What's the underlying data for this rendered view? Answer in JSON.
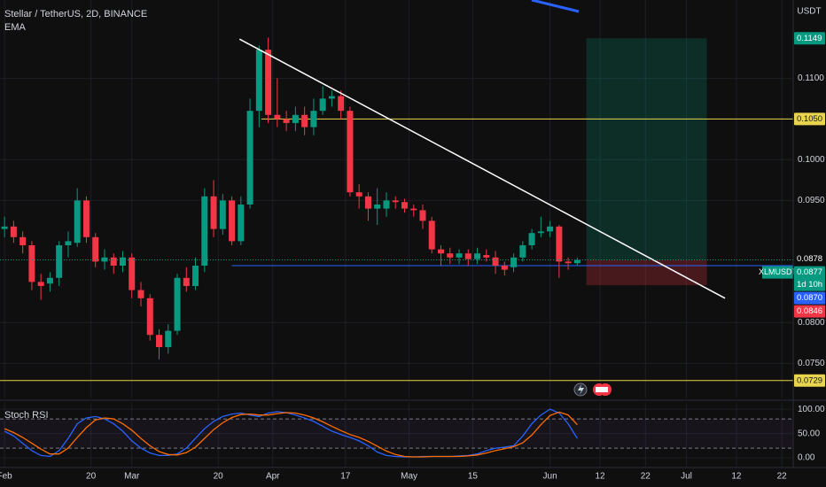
{
  "chart_data": [
    {
      "type": "candlestick",
      "title": "Stellar / TetherUS, 2D, BINANCE",
      "indicator": "EMA",
      "currency": "USDT",
      "xlim": [
        -1,
        173.5
      ],
      "ylim": [
        0.0707,
        0.1196
      ],
      "yticks": [
        {
          "value": 0.075,
          "label": "0.0750"
        },
        {
          "value": 0.08,
          "label": "0.0800"
        },
        {
          "value": 0.095,
          "label": "0.0950"
        },
        {
          "value": 0.1,
          "label": "0.1000"
        },
        {
          "value": 0.11,
          "label": "0.1100"
        }
      ],
      "x": [
        0,
        2,
        4,
        6,
        8,
        10,
        12,
        14,
        16,
        18,
        20,
        22,
        24,
        26,
        28,
        30,
        32,
        34,
        36,
        38,
        40,
        42,
        44,
        46,
        48,
        50,
        52,
        54,
        56,
        58,
        60,
        62,
        64,
        66,
        68,
        70,
        72,
        74,
        76,
        78,
        80,
        82,
        84,
        86,
        88,
        90,
        92,
        94,
        96,
        98,
        100,
        102,
        104,
        106,
        108,
        110,
        112,
        114,
        116,
        118,
        120,
        122,
        124,
        126
      ],
      "open": [
        0.0915,
        0.0918,
        0.0905,
        0.0895,
        0.085,
        0.0848,
        0.0855,
        0.0895,
        0.0898,
        0.095,
        0.0905,
        0.0875,
        0.088,
        0.087,
        0.088,
        0.084,
        0.083,
        0.0785,
        0.077,
        0.079,
        0.0855,
        0.0845,
        0.087,
        0.0955,
        0.0915,
        0.095,
        0.09,
        0.0945,
        0.106,
        0.1135,
        0.1055,
        0.105,
        0.1045,
        0.1055,
        0.104,
        0.106,
        0.1075,
        0.1078,
        0.106,
        0.096,
        0.0955,
        0.094,
        0.094,
        0.095,
        0.0948,
        0.094,
        0.0938,
        0.0925,
        0.089,
        0.0885,
        0.088,
        0.0885,
        0.0878,
        0.0883,
        0.088,
        0.087,
        0.0868,
        0.088,
        0.0895,
        0.091,
        0.0912,
        0.0918,
        0.0875,
        0.0873
      ],
      "high": [
        0.093,
        0.0925,
        0.0912,
        0.09,
        0.086,
        0.0862,
        0.09,
        0.0912,
        0.0965,
        0.0955,
        0.091,
        0.089,
        0.0885,
        0.0888,
        0.0885,
        0.085,
        0.0835,
        0.0792,
        0.0798,
        0.086,
        0.0868,
        0.088,
        0.0965,
        0.0975,
        0.0958,
        0.0955,
        0.0955,
        0.1075,
        0.114,
        0.115,
        0.11,
        0.106,
        0.1065,
        0.1065,
        0.1075,
        0.109,
        0.1085,
        0.1085,
        0.1065,
        0.097,
        0.096,
        0.0965,
        0.096,
        0.0955,
        0.0952,
        0.0945,
        0.0945,
        0.093,
        0.0895,
        0.0892,
        0.089,
        0.089,
        0.0892,
        0.089,
        0.0888,
        0.0875,
        0.0885,
        0.09,
        0.0915,
        0.093,
        0.0925,
        0.092,
        0.088,
        0.088
      ],
      "low": [
        0.0905,
        0.0898,
        0.0885,
        0.084,
        0.0828,
        0.0838,
        0.0845,
        0.088,
        0.0893,
        0.0898,
        0.0868,
        0.0865,
        0.086,
        0.0862,
        0.083,
        0.082,
        0.0778,
        0.0755,
        0.0762,
        0.0785,
        0.0838,
        0.084,
        0.0862,
        0.0905,
        0.0908,
        0.0895,
        0.0895,
        0.094,
        0.104,
        0.1045,
        0.104,
        0.1035,
        0.1035,
        0.103,
        0.103,
        0.1055,
        0.1065,
        0.105,
        0.0955,
        0.094,
        0.0925,
        0.092,
        0.093,
        0.094,
        0.0935,
        0.093,
        0.0915,
        0.0885,
        0.087,
        0.0872,
        0.0872,
        0.087,
        0.0872,
        0.0875,
        0.086,
        0.0858,
        0.0862,
        0.0875,
        0.089,
        0.0905,
        0.0905,
        0.0855,
        0.0865,
        0.087
      ],
      "close": [
        0.0918,
        0.0905,
        0.0895,
        0.085,
        0.0845,
        0.0855,
        0.0895,
        0.09,
        0.095,
        0.0905,
        0.0875,
        0.088,
        0.087,
        0.088,
        0.084,
        0.083,
        0.0785,
        0.077,
        0.079,
        0.0855,
        0.0845,
        0.087,
        0.0955,
        0.0915,
        0.095,
        0.09,
        0.0945,
        0.106,
        0.1135,
        0.1055,
        0.105,
        0.1045,
        0.1055,
        0.104,
        0.106,
        0.1075,
        0.1078,
        0.106,
        0.096,
        0.0955,
        0.094,
        0.0945,
        0.095,
        0.0948,
        0.094,
        0.0938,
        0.0925,
        0.089,
        0.0885,
        0.088,
        0.0885,
        0.0878,
        0.0885,
        0.088,
        0.087,
        0.0865,
        0.088,
        0.0895,
        0.091,
        0.0912,
        0.0918,
        0.0875,
        0.0873,
        0.0877
      ],
      "up_color": "#089981",
      "down_color": "#f23645",
      "trend_line": {
        "x": [
          51.7,
          158.5
        ],
        "y": [
          0.1148,
          0.083
        ],
        "color": "#ffffff"
      },
      "levels": [
        {
          "value": 0.105,
          "x_start": 56.5,
          "color": "#e8d44d"
        },
        {
          "value": 0.087,
          "x_start": 50,
          "color": "#2962ff"
        },
        {
          "value": 0.0729,
          "x_start": -1,
          "color": "#e8d44d"
        }
      ],
      "position": {
        "x": [
          128,
          154.5
        ],
        "entry": 0.0877,
        "target": 0.1149,
        "stop": 0.0846
      },
      "price_labels": [
        {
          "value": 0.1149,
          "label": "0.1149",
          "color": "#089981"
        },
        {
          "value": 0.105,
          "label": "0.1050",
          "color": "#e8d44d"
        },
        {
          "value": 0.0878,
          "label": "0.0878",
          "color": "#0f0f0f"
        },
        {
          "value": 0.0877,
          "label": "0.0877",
          "color": "#089981",
          "symbol": "XLMUSDT",
          "countdown": "1d 10h"
        },
        {
          "value": 0.087,
          "label": "0.0870",
          "color": "#2962ff"
        },
        {
          "value": 0.0846,
          "label": "0.0846",
          "color": "#f23645"
        },
        {
          "value": 0.0729,
          "label": "0.0729",
          "color": "#e8d44d"
        }
      ]
    },
    {
      "type": "line",
      "title": "Stoch RSI",
      "xlim": [
        -1,
        173.5
      ],
      "ylim": [
        -18,
        113
      ],
      "yticks": [
        {
          "value": 100,
          "label": "100.00"
        },
        {
          "value": 50,
          "label": "50.00"
        },
        {
          "value": 0,
          "label": "0.00"
        }
      ],
      "levels": [
        80,
        20
      ],
      "xticks": [
        {
          "value": 0,
          "label": "Feb"
        },
        {
          "value": 19,
          "label": "20"
        },
        {
          "value": 28,
          "label": "Mar"
        },
        {
          "value": 47,
          "label": "20"
        },
        {
          "value": 59,
          "label": "Apr"
        },
        {
          "value": 75,
          "label": "17"
        },
        {
          "value": 89,
          "label": "May"
        },
        {
          "value": 103,
          "label": "15"
        },
        {
          "value": 120,
          "label": "Jun"
        },
        {
          "value": 131,
          "label": "12"
        },
        {
          "value": 141,
          "label": "22"
        },
        {
          "value": 150,
          "label": "Jul"
        },
        {
          "value": 161,
          "label": "12"
        },
        {
          "value": 171,
          "label": "22"
        }
      ],
      "x": [
        0,
        2,
        4,
        6,
        8,
        10,
        12,
        14,
        16,
        18,
        20,
        22,
        24,
        26,
        28,
        30,
        32,
        34,
        36,
        38,
        40,
        42,
        44,
        46,
        48,
        50,
        52,
        54,
        56,
        58,
        60,
        62,
        64,
        66,
        68,
        70,
        72,
        74,
        76,
        78,
        80,
        82,
        84,
        86,
        88,
        90,
        92,
        94,
        96,
        98,
        100,
        102,
        104,
        106,
        108,
        110,
        112,
        114,
        116,
        118,
        120,
        122,
        124,
        126
      ],
      "series": [
        {
          "color": "#2962ff",
          "values": [
            55,
            45,
            30,
            15,
            5,
            3,
            15,
            40,
            70,
            82,
            85,
            80,
            70,
            55,
            35,
            20,
            10,
            5,
            5,
            8,
            20,
            40,
            60,
            75,
            85,
            90,
            92,
            88,
            85,
            92,
            95,
            93,
            88,
            82,
            75,
            65,
            55,
            48,
            42,
            35,
            25,
            12,
            5,
            3,
            2,
            2,
            3,
            3,
            3,
            3,
            4,
            5,
            8,
            15,
            20,
            22,
            25,
            45,
            70,
            88,
            100,
            92,
            70,
            40
          ]
        },
        {
          "color": "#ff6d00",
          "values": [
            60,
            52,
            42,
            30,
            18,
            8,
            8,
            20,
            42,
            62,
            78,
            82,
            80,
            70,
            57,
            40,
            25,
            13,
            7,
            6,
            11,
            22,
            40,
            58,
            72,
            83,
            89,
            90,
            88,
            88,
            91,
            93,
            92,
            88,
            82,
            74,
            65,
            56,
            48,
            42,
            34,
            24,
            14,
            7,
            3,
            2,
            2,
            3,
            3,
            3,
            3,
            4,
            6,
            10,
            15,
            19,
            23,
            31,
            47,
            68,
            87,
            94,
            88,
            68
          ]
        }
      ]
    }
  ]
}
